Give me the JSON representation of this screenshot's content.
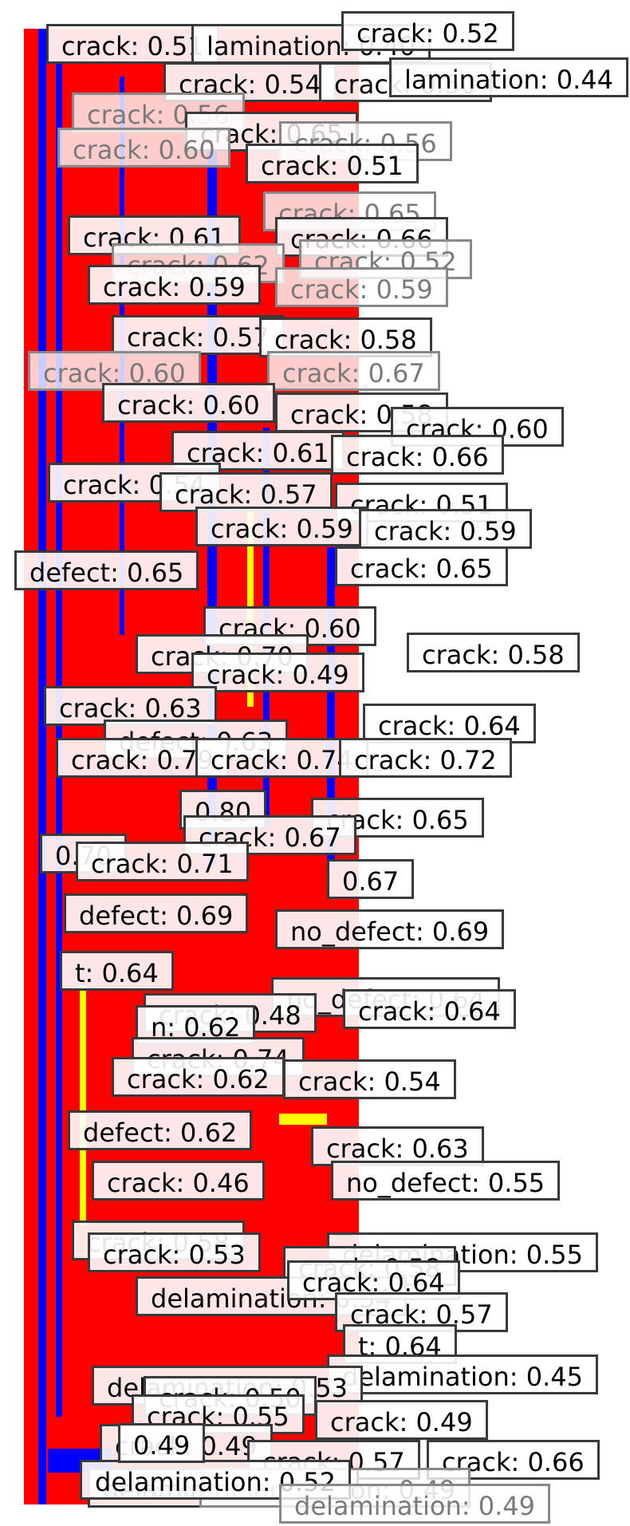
{
  "viewer": {
    "image_description_colors": {
      "defect_background": "#ff0000",
      "crack_stripe": "#0000ff",
      "delamination_stripe": "#ffff00",
      "label_fill": "#ffffff",
      "label_border": "#3a3a3a"
    }
  },
  "detections": [
    {
      "text": "crack: 0.51"
    },
    {
      "text": "lamination: 0.40"
    },
    {
      "text": "crack: 0.52"
    },
    {
      "text": "crack: 0.54"
    },
    {
      "text": "crack: 0.50"
    },
    {
      "text": "lamination: 0.44"
    },
    {
      "text": "crack: 0.56"
    },
    {
      "text": "crack: 0.65"
    },
    {
      "text": "crack: 0.56"
    },
    {
      "text": "crack: 0.60"
    },
    {
      "text": "crack: 0.51"
    },
    {
      "text": "crack: 0.65"
    },
    {
      "text": "crack: 0.61"
    },
    {
      "text": "crack: 0.66"
    },
    {
      "text": "crack: 0.62"
    },
    {
      "text": "crack: 0.52"
    },
    {
      "text": "crack: 0.59"
    },
    {
      "text": "crack: 0.59"
    },
    {
      "text": "crack: 0.57"
    },
    {
      "text": "crack: 0.58"
    },
    {
      "text": "crack: 0.60"
    },
    {
      "text": "crack: 0.67"
    },
    {
      "text": "crack: 0.60"
    },
    {
      "text": "crack: 0.58"
    },
    {
      "text": "crack: 0.60"
    },
    {
      "text": "crack: 0.61"
    },
    {
      "text": "crack: 0.66"
    },
    {
      "text": "crack: 0.54"
    },
    {
      "text": "crack: 0.57"
    },
    {
      "text": "crack: 0.51"
    },
    {
      "text": "crack: 0.59"
    },
    {
      "text": "crack: 0.59"
    },
    {
      "text": "defect: 0.65"
    },
    {
      "text": "crack: 0.65"
    },
    {
      "text": "crack: 0.60"
    },
    {
      "text": "crack: 0.70"
    },
    {
      "text": "crack: 0.58"
    },
    {
      "text": "crack: 0.49"
    },
    {
      "text": "crack: 0.63"
    },
    {
      "text": "crack: 0.64"
    },
    {
      "text": "defect: 0.63"
    },
    {
      "text": "crack: 0.79"
    },
    {
      "text": "crack: 0.74"
    },
    {
      "text": "crack: 0.72"
    },
    {
      "text": "0.80"
    },
    {
      "text": "crack: 0.65"
    },
    {
      "text": "0.70"
    },
    {
      "text": "crack: 0.67"
    },
    {
      "text": "crack: 0.71"
    },
    {
      "text": "0.67"
    },
    {
      "text": "defect: 0.69"
    },
    {
      "text": "no_defect: 0.69"
    },
    {
      "text": "t: 0.64"
    },
    {
      "text": "no_defect: 0.64"
    },
    {
      "text": "crack: 0.64"
    },
    {
      "text": "crack: 0.48"
    },
    {
      "text": "n: 0.62"
    },
    {
      "text": "crack: 0.74"
    },
    {
      "text": "crack: 0.62"
    },
    {
      "text": "crack: 0.54"
    },
    {
      "text": "defect: 0.62"
    },
    {
      "text": "crack: 0.63"
    },
    {
      "text": "crack: 0.46"
    },
    {
      "text": "no_defect: 0.55"
    },
    {
      "text": "crack: 0.58"
    },
    {
      "text": "delamination: 0.55"
    },
    {
      "text": "crack: 0.53"
    },
    {
      "text": "crack: 0.58"
    },
    {
      "text": "delamination: 0.54"
    },
    {
      "text": "crack: 0.64"
    },
    {
      "text": "crack: 0.57"
    },
    {
      "text": "t: 0.64"
    },
    {
      "text": "delamination: 0.45"
    },
    {
      "text": "delamination: 0.53"
    },
    {
      "text": "crack: 0.50"
    },
    {
      "text": "crack: 0.55"
    },
    {
      "text": "crack: 0.49"
    },
    {
      "text": "crack: 0.49"
    },
    {
      "text": "crack: 0.57"
    },
    {
      "text": "crack: 0.66"
    },
    {
      "text": "delamination: 0.46"
    },
    {
      "text": "delamination: 0.49"
    },
    {
      "text": "delamination: 0.52"
    },
    {
      "text": "delamination: 0.49"
    },
    {
      "text": "0.49"
    }
  ]
}
